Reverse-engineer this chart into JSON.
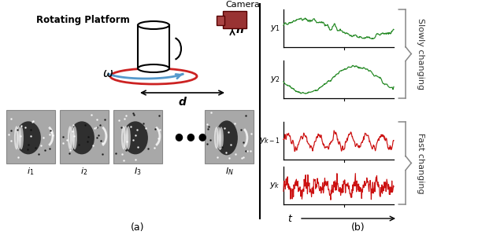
{
  "fig_width": 6.4,
  "fig_height": 2.99,
  "dpi": 100,
  "bg_color": "#ffffff",
  "label_a": "(a)",
  "label_b": "(b)",
  "green_color": "#228822",
  "red_color": "#cc1111",
  "gray_color": "#888888",
  "blue_color": "#4488cc",
  "red_ellipse_color": "#cc2222",
  "camera_color": "#993333",
  "slowly_changing_text": "Slowly changing",
  "fast_changing_text": "Fast changing",
  "rotating_platform_label": "Rotating Platform",
  "omega_label": "ω",
  "h_label": "h",
  "d_label": "d",
  "camera_label": "Camera",
  "t_label": "t",
  "frame_labels": [
    "$i_1$",
    "$i_2$",
    "$I_3$",
    "$I_N$"
  ],
  "plot_labels": [
    "$y_1$",
    "$y_2$",
    "$y_{k-1}$",
    "$y_k$"
  ],
  "plot_colors": [
    "#228822",
    "#228822",
    "#cc1111",
    "#cc1111"
  ],
  "frame_bg": "#a8a8a8",
  "frame_border": "#888888"
}
